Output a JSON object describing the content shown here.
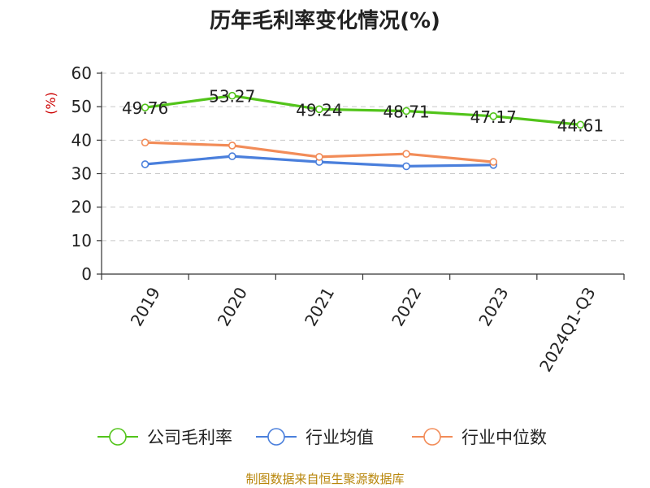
{
  "chart_data": {
    "type": "line",
    "title": "历年毛利率变化情况(%)",
    "ylabel": "(%)",
    "xlabel": "",
    "categories": [
      "2019",
      "2020",
      "2021",
      "2022",
      "2023",
      "2024Q1-Q3"
    ],
    "ylim": [
      0,
      60
    ],
    "yticks": [
      0,
      10,
      20,
      30,
      40,
      50,
      60
    ],
    "grid": true,
    "legend_position": "bottom",
    "series": [
      {
        "name": "公司毛利率",
        "color": "#52c41a",
        "values": [
          49.76,
          53.27,
          49.24,
          48.71,
          47.17,
          44.61
        ],
        "labels": [
          "49.76",
          "53.27",
          "49.24",
          "48.71",
          "47.17",
          "44.61"
        ]
      },
      {
        "name": "行业均值",
        "color": "#4a7fdc",
        "values": [
          32.8,
          35.2,
          33.5,
          32.2,
          32.6,
          null
        ]
      },
      {
        "name": "行业中位数",
        "color": "#f28c58",
        "values": [
          39.3,
          38.4,
          35.0,
          35.9,
          33.5,
          null
        ]
      }
    ]
  },
  "source": "制图数据来自恒生聚源数据库"
}
